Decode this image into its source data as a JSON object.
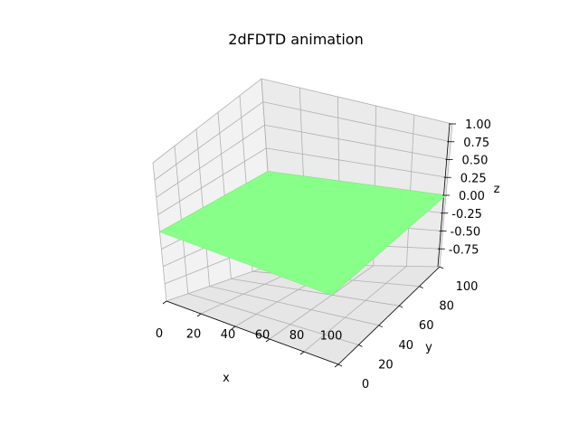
{
  "chart_data": {
    "type": "surface",
    "title": "2dFDTD animation",
    "xlabel": "x",
    "ylabel": "y",
    "zlabel": "z",
    "x_ticks": [
      "0",
      "20",
      "40",
      "60",
      "80",
      "100"
    ],
    "y_ticks": [
      "0",
      "20",
      "40",
      "60",
      "80",
      "100"
    ],
    "z_ticks": [
      "-0.75",
      "-0.50",
      "-0.25",
      "0.00",
      "0.25",
      "0.50",
      "0.75",
      "1.00"
    ],
    "x_range": [
      0,
      100
    ],
    "y_range": [
      0,
      100
    ],
    "z_range": [
      -1,
      1
    ],
    "grid": true,
    "surface": {
      "z_value": 0,
      "color": "#88ff88"
    }
  }
}
